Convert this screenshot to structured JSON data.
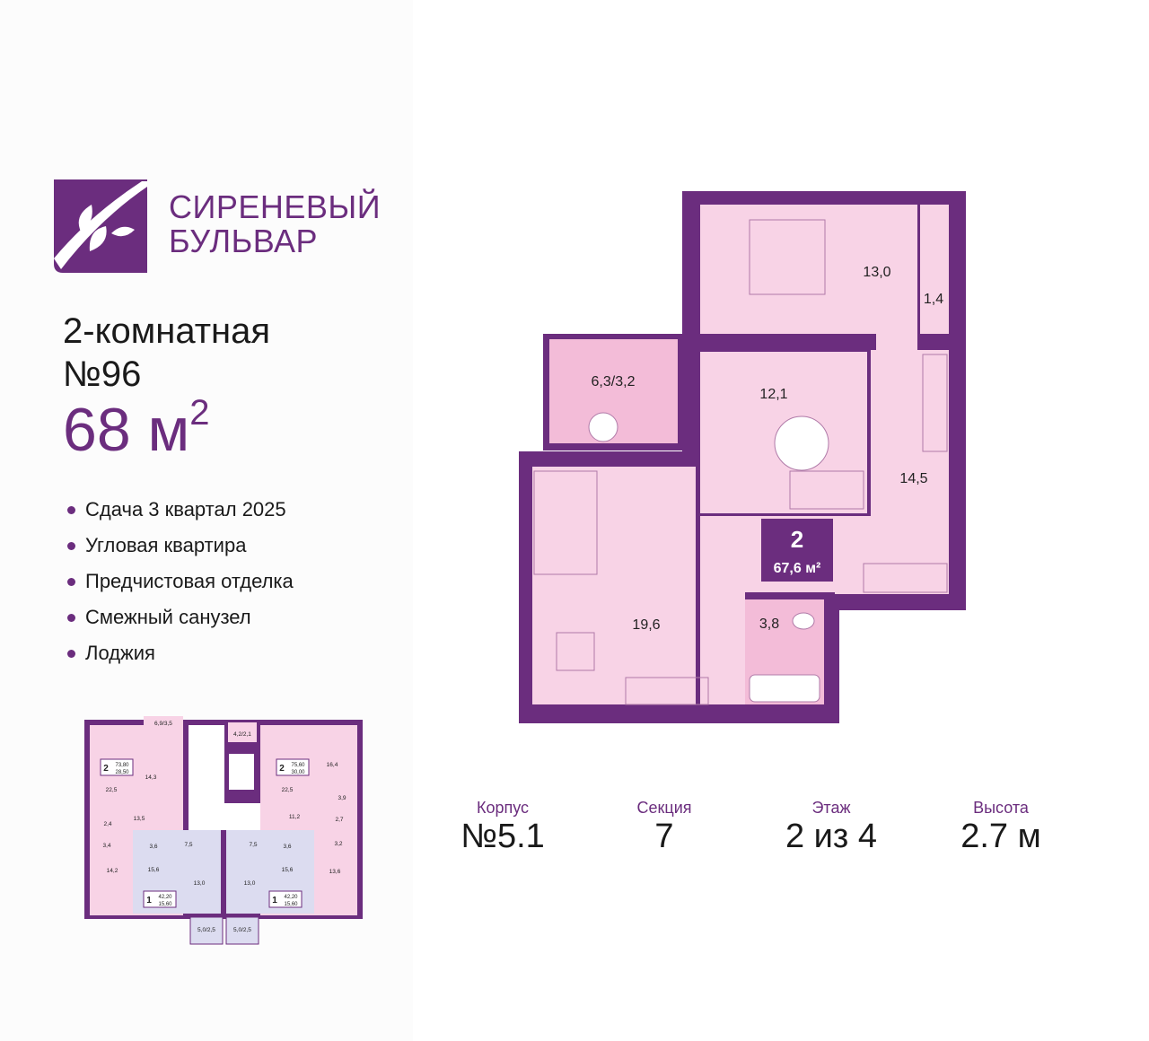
{
  "brand": {
    "line1": "СИРЕНЕВЫЙ",
    "line2": "БУЛЬВАР",
    "color": "#6b2d7e"
  },
  "apartment": {
    "type": "2-комнатная",
    "number": "№96",
    "area_value": "68 м",
    "area_sup": "2",
    "features": [
      "Сдача 3 квартал 2025",
      "Угловая квартира",
      "Предчистовая отделка",
      "Смежный санузел",
      "Лоджия"
    ]
  },
  "plan": {
    "badge_rooms": "2",
    "badge_area": "67,6 м²",
    "room_labels": [
      "13,0",
      "1,4",
      "6,3/3,2",
      "12,1",
      "14,5",
      "19,6",
      "3,8"
    ],
    "colors": {
      "wall": "#6b2d7e",
      "room": "#f8d3e6",
      "loggia": "#f3bcd8"
    }
  },
  "floor_plan": {
    "room_labels": [
      "6,9/3,5",
      "4,2/2,1",
      "14,3",
      "22,5",
      "13,5",
      "2,4",
      "3,4",
      "14,2",
      "3,6",
      "7,5",
      "15,6",
      "13,0",
      "13,0",
      "7,5",
      "3,6",
      "15,6",
      "22,5",
      "16,4",
      "3,9",
      "11,2",
      "2,7",
      "3,2",
      "13,6",
      "5,0/2,5",
      "5,0/2,5"
    ],
    "badges": [
      {
        "rooms": "2",
        "total": "73,80",
        "living": "28,50"
      },
      {
        "rooms": "2",
        "total": "75,60",
        "living": "30,00"
      },
      {
        "rooms": "1",
        "total": "42,20",
        "living": "15,60"
      },
      {
        "rooms": "1",
        "total": "42,20",
        "living": "15,60"
      }
    ],
    "colors": {
      "two_room": "#f8d3e6",
      "one_room": "#dcdcf0",
      "common": "#ffffff"
    }
  },
  "info": [
    {
      "label": "Корпус",
      "value": "№5.1"
    },
    {
      "label": "Секция",
      "value": "7"
    },
    {
      "label": "Этаж",
      "value": "2 из 4"
    },
    {
      "label": "Высота",
      "value": "2.7 м"
    }
  ]
}
